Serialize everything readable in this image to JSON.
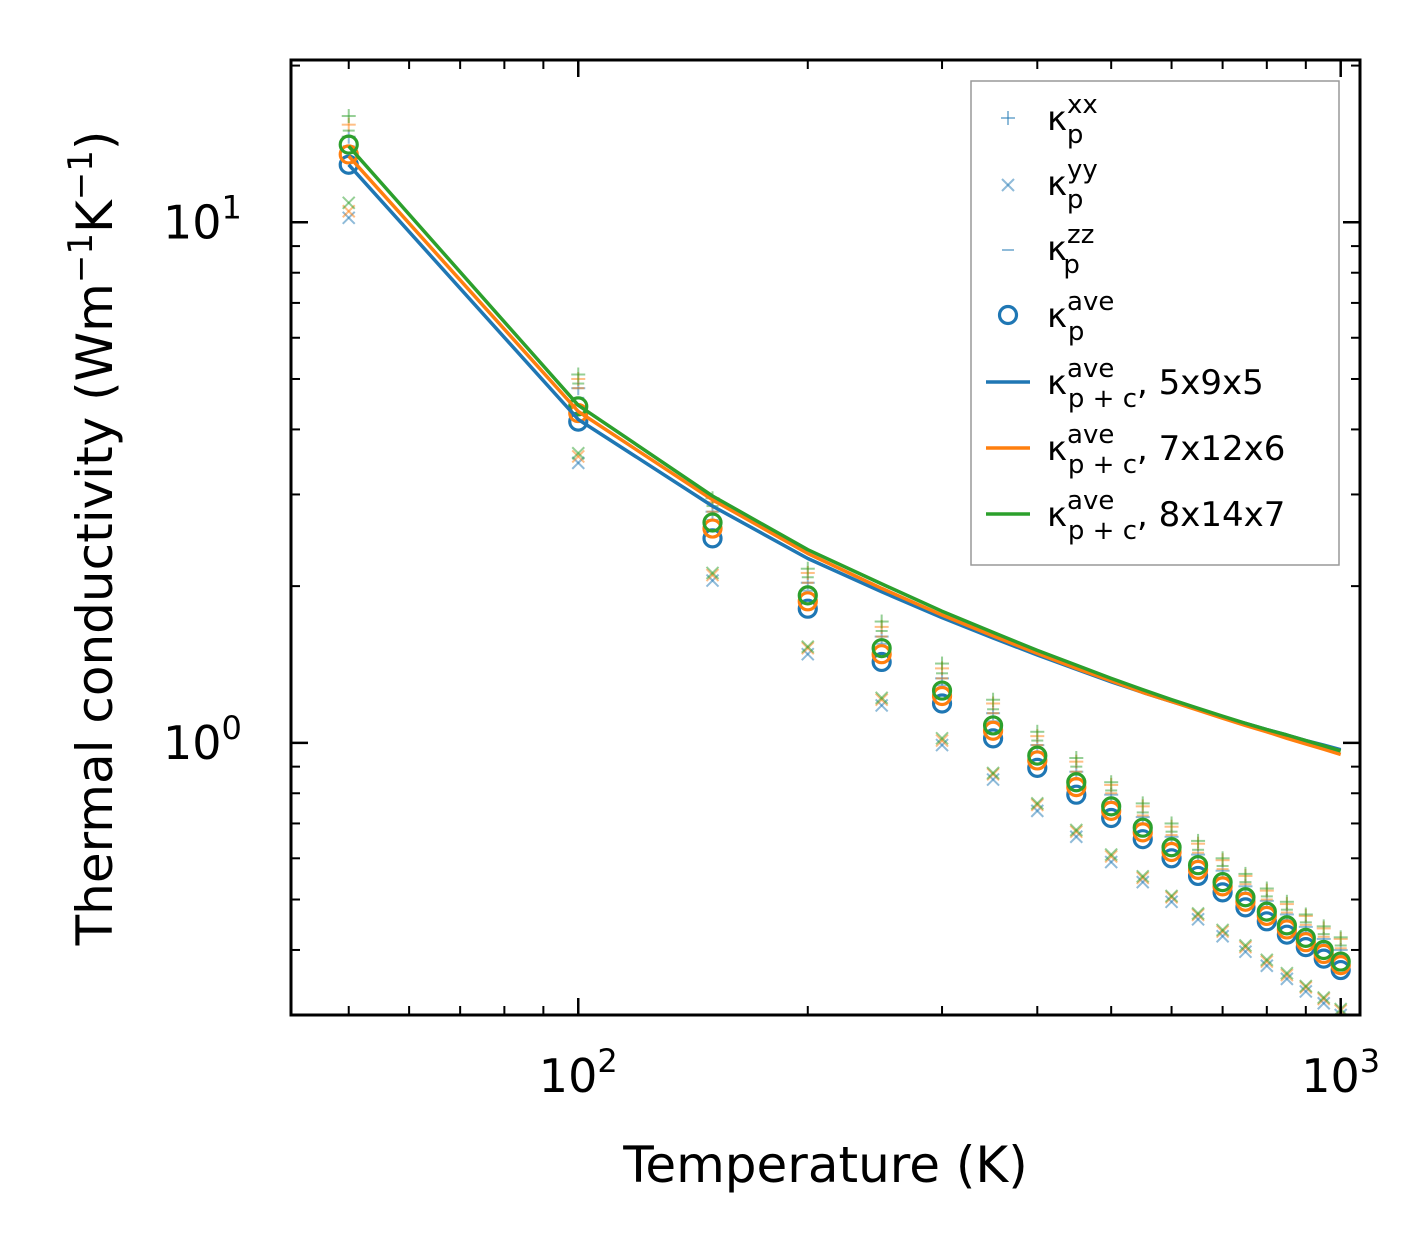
{
  "chart_data": {
    "type": "scatter",
    "xscale": "log",
    "yscale": "log",
    "xlabel": "Temperature (K)",
    "ylabel": "Thermal conductivity (Wm^-1K^-1)",
    "ylabel_parts": {
      "main": "Thermal conductivity (Wm",
      "sup1": "−1",
      "mid": "K",
      "sup2": "−1",
      "end": ")"
    },
    "xlim": [
      42,
      1060
    ],
    "ylim": [
      0.3,
      20.5
    ],
    "xticks": [
      {
        "value": 100,
        "base": "10",
        "exp": "2"
      },
      {
        "value": 1000,
        "base": "10",
        "exp": "3"
      }
    ],
    "yticks": [
      {
        "value": 1,
        "base": "10",
        "exp": "0"
      },
      {
        "value": 10,
        "base": "10",
        "exp": "1"
      }
    ],
    "legend_position": "top-right",
    "legend": [
      {
        "base": "κ",
        "sup": "xx",
        "sub": "p",
        "suffix": "",
        "marker": "plus",
        "color": "#1f77b4"
      },
      {
        "base": "κ",
        "sup": "yy",
        "sub": "p",
        "suffix": "",
        "marker": "x",
        "color": "#1f77b4"
      },
      {
        "base": "κ",
        "sup": "zz",
        "sub": "p",
        "suffix": "",
        "marker": "dash",
        "color": "#1f77b4"
      },
      {
        "base": "κ",
        "sup": "ave",
        "sub": "p",
        "suffix": "",
        "marker": "circle",
        "color": "#1f77b4"
      },
      {
        "base": "κ",
        "sup": "ave",
        "sub": "p + c",
        "suffix": ", 5x9x5",
        "marker": "line",
        "color": "#1f77b4"
      },
      {
        "base": "κ",
        "sup": "ave",
        "sub": "p + c",
        "suffix": ", 7x12x6",
        "marker": "line",
        "color": "#ff7f0e"
      },
      {
        "base": "κ",
        "sup": "ave",
        "sub": "p + c",
        "suffix": ", 8x14x7",
        "marker": "line",
        "color": "#2ca02c"
      }
    ],
    "x": [
      50,
      100,
      150,
      200,
      250,
      300,
      350,
      400,
      450,
      500,
      550,
      600,
      650,
      700,
      750,
      800,
      850,
      900,
      950,
      1000
    ],
    "groups": [
      {
        "name": "5x9x5",
        "color": "#1f77b4",
        "kxx": [
          14.6,
          4.8,
          2.78,
          2.03,
          1.6,
          1.33,
          1.14,
          0.99,
          0.88,
          0.795,
          0.72,
          0.66,
          0.61,
          0.568,
          0.53,
          0.497,
          0.468,
          0.443,
          0.42,
          0.4
        ],
        "kyy": [
          10.2,
          3.45,
          2.05,
          1.48,
          1.18,
          0.99,
          0.85,
          0.74,
          0.66,
          0.59,
          0.54,
          0.495,
          0.458,
          0.425,
          0.397,
          0.373,
          0.352,
          0.333,
          0.316,
          0.3
        ],
        "kzz": [
          14.0,
          4.6,
          2.68,
          1.96,
          1.55,
          1.29,
          1.1,
          0.96,
          0.85,
          0.77,
          0.7,
          0.64,
          0.59,
          0.55,
          0.515,
          0.484,
          0.457,
          0.432,
          0.41,
          0.39
        ],
        "kave": [
          12.9,
          4.14,
          2.47,
          1.81,
          1.43,
          1.19,
          1.02,
          0.895,
          0.795,
          0.717,
          0.653,
          0.6,
          0.555,
          0.516,
          0.483,
          0.454,
          0.428,
          0.405,
          0.385,
          0.366
        ],
        "kpc": [
          12.9,
          4.18,
          2.85,
          2.26,
          1.95,
          1.74,
          1.59,
          1.475,
          1.385,
          1.31,
          1.25,
          1.2,
          1.16,
          1.12,
          1.09,
          1.06,
          1.035,
          1.01,
          0.99,
          0.97
        ]
      },
      {
        "name": "7x12x6",
        "color": "#ff7f0e",
        "kxx": [
          15.4,
          5.0,
          2.9,
          2.12,
          1.67,
          1.39,
          1.19,
          1.03,
          0.92,
          0.83,
          0.755,
          0.69,
          0.64,
          0.595,
          0.555,
          0.52,
          0.49,
          0.465,
          0.44,
          0.42
        ],
        "kyy": [
          10.5,
          3.55,
          2.1,
          1.52,
          1.21,
          1.01,
          0.87,
          0.76,
          0.675,
          0.605,
          0.55,
          0.505,
          0.467,
          0.434,
          0.405,
          0.38,
          0.358,
          0.339,
          0.322,
          0.306
        ],
        "kzz": [
          14.6,
          4.8,
          2.78,
          2.03,
          1.6,
          1.33,
          1.14,
          0.99,
          0.88,
          0.8,
          0.725,
          0.665,
          0.615,
          0.572,
          0.535,
          0.5,
          0.472,
          0.447,
          0.424,
          0.403
        ],
        "kave": [
          13.5,
          4.3,
          2.58,
          1.87,
          1.48,
          1.23,
          1.055,
          0.925,
          0.822,
          0.74,
          0.673,
          0.617,
          0.57,
          0.53,
          0.495,
          0.465,
          0.438,
          0.414,
          0.393,
          0.374
        ],
        "kpc": [
          13.4,
          4.33,
          2.93,
          2.31,
          1.98,
          1.76,
          1.605,
          1.485,
          1.39,
          1.315,
          1.25,
          1.2,
          1.155,
          1.115,
          1.08,
          1.05,
          1.02,
          0.995,
          0.972,
          0.95
        ]
      },
      {
        "name": "8x14x7",
        "color": "#2ca02c",
        "kxx": [
          16.0,
          5.1,
          2.95,
          2.16,
          1.71,
          1.42,
          1.21,
          1.05,
          0.935,
          0.84,
          0.765,
          0.7,
          0.648,
          0.6,
          0.56,
          0.525,
          0.495,
          0.468,
          0.444,
          0.423
        ],
        "kyy": [
          10.9,
          3.6,
          2.12,
          1.53,
          1.22,
          1.02,
          0.875,
          0.765,
          0.68,
          0.61,
          0.554,
          0.508,
          0.47,
          0.437,
          0.408,
          0.383,
          0.361,
          0.341,
          0.324,
          0.308
        ],
        "kzz": [
          15.0,
          4.9,
          2.85,
          2.08,
          1.64,
          1.36,
          1.16,
          1.01,
          0.9,
          0.81,
          0.735,
          0.675,
          0.623,
          0.58,
          0.54,
          0.507,
          0.478,
          0.452,
          0.429,
          0.408
        ],
        "kave": [
          14.1,
          4.43,
          2.65,
          1.92,
          1.52,
          1.26,
          1.08,
          0.945,
          0.84,
          0.755,
          0.687,
          0.63,
          0.582,
          0.54,
          0.505,
          0.474,
          0.446,
          0.422,
          0.4,
          0.38
        ],
        "kpc": [
          14.0,
          4.45,
          2.98,
          2.35,
          2.02,
          1.79,
          1.63,
          1.505,
          1.41,
          1.33,
          1.265,
          1.21,
          1.165,
          1.125,
          1.09,
          1.06,
          1.035,
          1.01,
          0.987,
          0.965
        ]
      }
    ]
  }
}
